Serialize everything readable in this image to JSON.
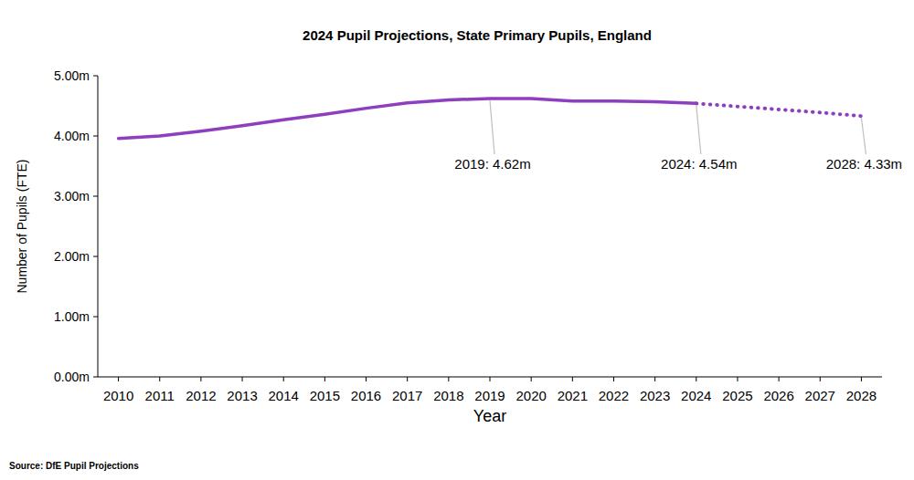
{
  "chart_data": {
    "type": "line",
    "title": "2024 Pupil Projections, State Primary Pupils, England",
    "x_label": "Year",
    "y_label": "Number of Pupils (FTE)",
    "source": "Source: DfE Pupil Projections",
    "x": [
      2010,
      2011,
      2012,
      2013,
      2014,
      2015,
      2016,
      2017,
      2018,
      2019,
      2020,
      2021,
      2022,
      2023,
      2024,
      2025,
      2026,
      2027,
      2028
    ],
    "series": [
      {
        "color": "#8e3fbf",
        "line_style": "solid",
        "values": [
          3.96,
          4.0,
          4.08,
          4.17,
          4.27,
          4.36,
          4.46,
          4.55,
          4.6,
          4.62,
          4.62,
          4.58,
          4.58,
          4.57,
          4.54,
          null,
          null,
          null,
          null
        ]
      },
      {
        "color": "#8e3fbf",
        "line_style": "dotted",
        "values": [
          null,
          null,
          null,
          null,
          null,
          null,
          null,
          null,
          null,
          null,
          null,
          null,
          null,
          null,
          4.54,
          4.49,
          4.44,
          4.39,
          4.33
        ]
      }
    ],
    "xlim": [
      2009.5,
      2028.5
    ],
    "xticks": [
      2010,
      2011,
      2012,
      2013,
      2014,
      2015,
      2016,
      2017,
      2018,
      2019,
      2020,
      2021,
      2022,
      2023,
      2024,
      2025,
      2026,
      2027,
      2028
    ],
    "ylim": [
      0,
      5
    ],
    "yticks": [
      {
        "value": 0,
        "label": "0.00m"
      },
      {
        "value": 1,
        "label": "1.00m"
      },
      {
        "value": 2,
        "label": "2.00m"
      },
      {
        "value": 3,
        "label": "3.00m"
      },
      {
        "value": 4,
        "label": "4.00m"
      },
      {
        "value": 5,
        "label": "5.00m"
      }
    ],
    "grid": false,
    "annotations": [
      {
        "text": "2019: 4.62m",
        "x": 2019,
        "y": 4.62
      },
      {
        "text": "2024: 4.54m",
        "x": 2024,
        "y": 4.54
      },
      {
        "text": "2028: 4.33m",
        "x": 2028,
        "y": 4.33
      }
    ]
  }
}
